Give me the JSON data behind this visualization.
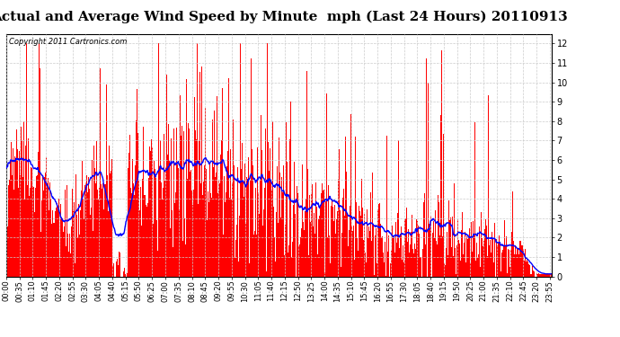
{
  "title": "Actual and Average Wind Speed by Minute  mph (Last 24 Hours) 20110913",
  "copyright_text": "Copyright 2011 Cartronics.com",
  "ylim": [
    0,
    12.5
  ],
  "yticks": [
    0.0,
    1.0,
    2.0,
    3.0,
    4.0,
    5.0,
    6.0,
    7.0,
    8.0,
    9.0,
    10.0,
    11.0,
    12.0
  ],
  "bar_color": "#FF0000",
  "line_color": "#0000FF",
  "background_color": "#FFFFFF",
  "grid_color": "#CCCCCC",
  "title_fontsize": 11,
  "copyright_fontsize": 6,
  "tick_label_fontsize": 6,
  "ytick_fontsize": 7,
  "n_minutes": 1440,
  "x_tick_labels": [
    "00:00",
    "00:35",
    "01:10",
    "01:45",
    "02:20",
    "02:55",
    "03:30",
    "04:05",
    "04:40",
    "05:15",
    "05:50",
    "06:25",
    "07:00",
    "07:35",
    "08:10",
    "08:45",
    "09:20",
    "09:55",
    "10:30",
    "11:05",
    "11:40",
    "12:15",
    "12:50",
    "13:25",
    "14:00",
    "14:35",
    "15:10",
    "15:45",
    "16:20",
    "16:55",
    "17:30",
    "18:05",
    "18:40",
    "19:15",
    "19:50",
    "20:25",
    "21:00",
    "21:35",
    "22:10",
    "22:45",
    "23:20",
    "23:55"
  ]
}
